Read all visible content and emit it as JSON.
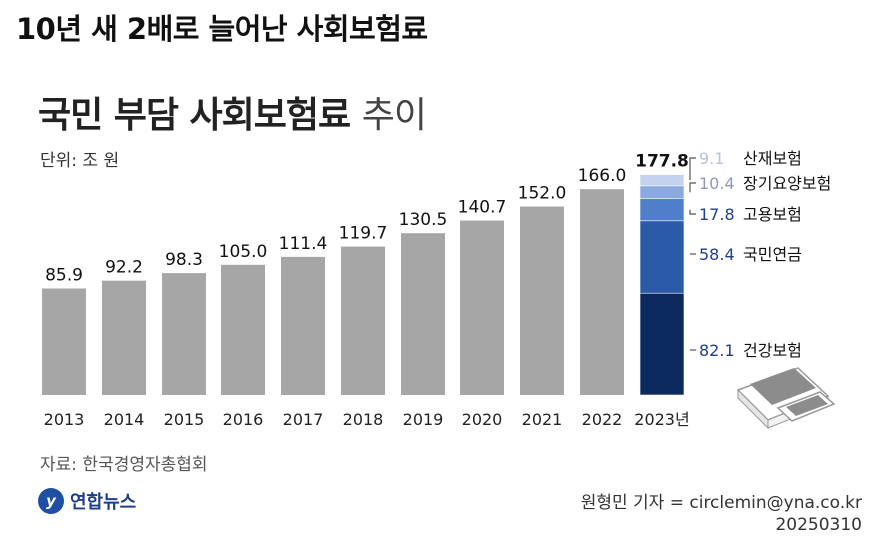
{
  "headline": "10년 새 2배로 늘어난 사회보험료",
  "graphic": {
    "title": "국민 부담 사회보험료",
    "title_suffix": "추이",
    "unit": "단위: 조 원",
    "source": "자료: 한국경영자총협회",
    "logo": "연합뉴스",
    "credit": "원형민 기자 = circlemin@yna.co.kr",
    "date": "20250310"
  },
  "colors": {
    "bar": "#a6a6a6",
    "stack": [
      "#0d2a5e",
      "#2b5aa8",
      "#4f7fcb",
      "#8aa9dc",
      "#c3d2ee"
    ],
    "value_label": "#1e3f8a"
  },
  "chart_data": {
    "type": "bar",
    "categories": [
      "2013",
      "2014",
      "2015",
      "2016",
      "2017",
      "2018",
      "2019",
      "2020",
      "2021",
      "2022",
      "2023년"
    ],
    "values": [
      85.9,
      92.2,
      98.3,
      105.0,
      111.4,
      119.7,
      130.5,
      140.7,
      152.0,
      166.0,
      177.8
    ],
    "value_labels": [
      "85.9",
      "92.2",
      "98.3",
      "105.0",
      "111.4",
      "119.7",
      "130.5",
      "140.7",
      "152.0",
      "166.0",
      "177.8"
    ],
    "breakdown_2023": [
      {
        "name": "건강보험",
        "value": 82.1,
        "label": "82.1"
      },
      {
        "name": "국민연금",
        "value": 58.4,
        "label": "58.4"
      },
      {
        "name": "고용보험",
        "value": 17.8,
        "label": "17.8"
      },
      {
        "name": "장기요양보험",
        "value": 10.4,
        "label": "10.4"
      },
      {
        "name": "산재보험",
        "value": 9.1,
        "label": "9.1"
      }
    ],
    "ylim": [
      0,
      190
    ],
    "grid": false,
    "legend": "right"
  }
}
